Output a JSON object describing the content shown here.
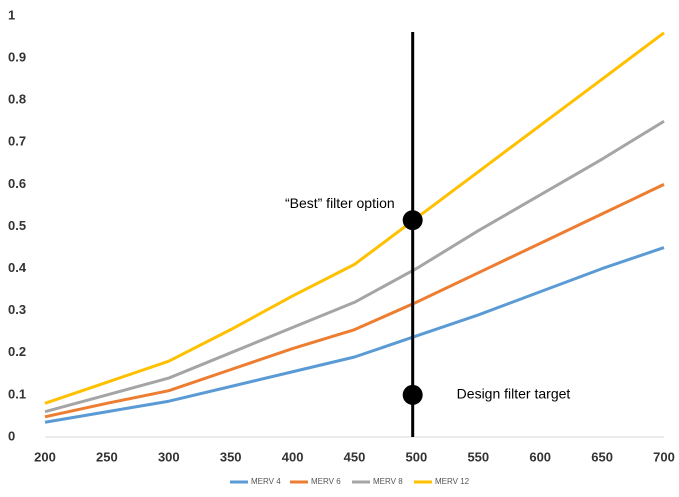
{
  "chart_data": {
    "type": "line",
    "x": [
      200,
      250,
      300,
      350,
      400,
      450,
      500,
      550,
      600,
      650,
      700
    ],
    "series": [
      {
        "name": "MERV 4",
        "color": "#5b9bd5",
        "values": [
          0.035,
          0.06,
          0.085,
          0.12,
          0.155,
          0.19,
          0.24,
          0.29,
          0.345,
          0.4,
          0.45
        ]
      },
      {
        "name": "MERV 6",
        "color": "#ed7d31",
        "values": [
          0.048,
          0.08,
          0.11,
          0.16,
          0.21,
          0.255,
          0.32,
          0.39,
          0.46,
          0.53,
          0.6
        ]
      },
      {
        "name": "MERV 8",
        "color": "#a5a5a5",
        "values": [
          0.06,
          0.1,
          0.14,
          0.2,
          0.26,
          0.32,
          0.4,
          0.49,
          0.575,
          0.66,
          0.75
        ]
      },
      {
        "name": "MERV 12",
        "color": "#ffc000",
        "values": [
          0.08,
          0.13,
          0.18,
          0.255,
          0.335,
          0.41,
          0.52,
          0.63,
          0.74,
          0.85,
          0.96
        ]
      }
    ],
    "xlim": [
      200,
      700
    ],
    "ylim": [
      0,
      1
    ],
    "xticks": [
      200,
      250,
      300,
      350,
      400,
      450,
      500,
      550,
      600,
      650,
      700
    ],
    "yticks": [
      0,
      0.1,
      0.2,
      0.3,
      0.4,
      0.5,
      0.6,
      0.7,
      0.8,
      0.9,
      1
    ],
    "vline": 497,
    "markers": [
      {
        "x": 497,
        "y": 0.515,
        "label": "“Best” filter option"
      },
      {
        "x": 497,
        "y": 0.1,
        "label": "Design filter target"
      }
    ]
  }
}
